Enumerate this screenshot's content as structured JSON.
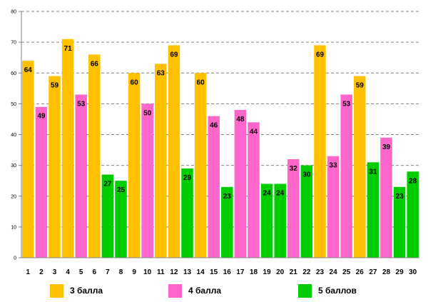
{
  "chart_data": {
    "type": "bar",
    "title": "",
    "xlabel": "",
    "ylabel": "",
    "ylim": [
      0,
      80
    ],
    "yticks": [
      0,
      10,
      20,
      30,
      40,
      50,
      60,
      70,
      80
    ],
    "grid": true,
    "categories": [
      "1",
      "2",
      "3",
      "4",
      "5",
      "6",
      "7",
      "8",
      "9",
      "10",
      "11",
      "12",
      "13",
      "14",
      "15",
      "16",
      "17",
      "18",
      "19",
      "20",
      "21",
      "22",
      "23",
      "24",
      "25",
      "26",
      "27",
      "28",
      "29",
      "30"
    ],
    "values": [
      64,
      49,
      59,
      71,
      53,
      66,
      27,
      25,
      60,
      50,
      63,
      69,
      29,
      60,
      46,
      23,
      48,
      44,
      24,
      24,
      32,
      30,
      69,
      33,
      53,
      59,
      31,
      39,
      23,
      28
    ],
    "grades": [
      3,
      4,
      3,
      3,
      4,
      3,
      5,
      5,
      3,
      4,
      3,
      3,
      5,
      3,
      4,
      5,
      4,
      4,
      5,
      5,
      4,
      5,
      3,
      4,
      4,
      3,
      5,
      4,
      5,
      5
    ],
    "series_colors": {
      "3": "#FFC000",
      "4": "#FF66CC",
      "5": "#00CC00"
    },
    "legend": [
      {
        "grade": "3",
        "label": "3 балла",
        "color": "#FFC000"
      },
      {
        "grade": "4",
        "label": "4 балла",
        "color": "#FF66CC"
      },
      {
        "grade": "5",
        "label": "5 баллов",
        "color": "#00CC00"
      }
    ],
    "legend_position": "bottom"
  }
}
